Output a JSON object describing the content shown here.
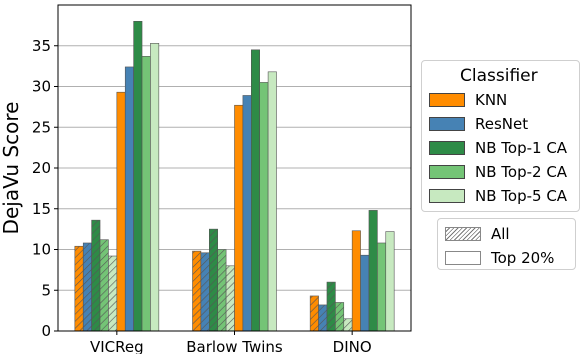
{
  "chart_data": {
    "type": "bar",
    "ylabel": "DejaVu Score",
    "xlabel": "",
    "categories": [
      "VICReg",
      "Barlow Twins",
      "DINO"
    ],
    "ylim": [
      0,
      40
    ],
    "yticks": [
      0,
      5,
      10,
      15,
      20,
      25,
      30,
      35
    ],
    "grid": "horizontal",
    "legend_title": "Classifier",
    "legend_placement": "right",
    "classifiers": [
      {
        "name": "KNN",
        "color": "#ff8c00"
      },
      {
        "name": "ResNet",
        "color": "#4682b4"
      },
      {
        "name": "NB Top-1 CA",
        "color": "#2e8b47"
      },
      {
        "name": "NB Top-2 CA",
        "color": "#74c476"
      },
      {
        "name": "NB Top-5 CA",
        "color": "#c7e9c0"
      }
    ],
    "subsets": [
      {
        "name": "All",
        "pattern": "hatched"
      },
      {
        "name": "Top 20%",
        "pattern": "plain"
      }
    ],
    "series": [
      {
        "classifier": "KNN",
        "subset": "All",
        "values": [
          10.4,
          9.8,
          4.3
        ]
      },
      {
        "classifier": "ResNet",
        "subset": "All",
        "values": [
          10.8,
          9.6,
          3.2
        ]
      },
      {
        "classifier": "NB Top-1 CA",
        "subset": "All",
        "values": [
          13.6,
          12.5,
          6.0
        ]
      },
      {
        "classifier": "NB Top-2 CA",
        "subset": "All",
        "values": [
          11.2,
          10.0,
          3.5
        ]
      },
      {
        "classifier": "NB Top-5 CA",
        "subset": "All",
        "values": [
          9.2,
          8.0,
          1.5
        ]
      },
      {
        "classifier": "KNN",
        "subset": "Top 20%",
        "values": [
          29.3,
          27.7,
          12.3
        ]
      },
      {
        "classifier": "ResNet",
        "subset": "Top 20%",
        "values": [
          32.4,
          28.9,
          9.3
        ]
      },
      {
        "classifier": "NB Top-1 CA",
        "subset": "Top 20%",
        "values": [
          38.0,
          34.5,
          14.8
        ]
      },
      {
        "classifier": "NB Top-2 CA",
        "subset": "Top 20%",
        "values": [
          33.7,
          30.5,
          10.8
        ]
      },
      {
        "classifier": "NB Top-5 CA",
        "subset": "Top 20%",
        "values": [
          35.3,
          31.8,
          12.2
        ]
      }
    ]
  }
}
